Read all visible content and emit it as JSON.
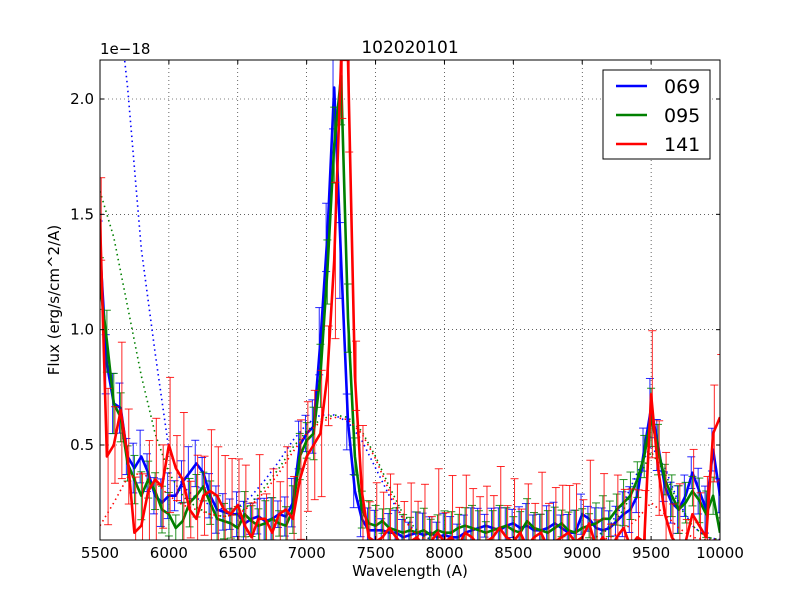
{
  "chart_data": {
    "type": "line",
    "title": "102020101",
    "xlabel": "Wavelength (A)",
    "ylabel": "Flux (erg/s/cm^2/A)",
    "y_offset_label": "1e−18",
    "xlim": [
      5500,
      10000
    ],
    "ylim": [
      0.088,
      2.17
    ],
    "xticks": [
      5500,
      6000,
      6500,
      7000,
      7500,
      8000,
      8500,
      9000,
      9500,
      10000
    ],
    "xtick_labels": [
      "5500",
      "6000",
      "6500",
      "7000",
      "7500",
      "8000",
      "8500",
      "9000",
      "9500",
      "10000"
    ],
    "yticks": [
      0.5,
      1.0,
      1.5,
      2.0
    ],
    "ytick_labels": [
      "0.5",
      "1.0",
      "1.5",
      "2.0"
    ],
    "grid": true,
    "legend_position": "upper right",
    "series": [
      {
        "name": "069",
        "color": "#0000ff",
        "x": [
          5500,
          5550,
          5600,
          5650,
          5700,
          5750,
          5800,
          5850,
          5900,
          5950,
          6000,
          6050,
          6100,
          6150,
          6200,
          6250,
          6300,
          6350,
          6400,
          6450,
          6500,
          6550,
          6600,
          6650,
          6700,
          6750,
          6800,
          6850,
          6900,
          6950,
          7000,
          7050,
          7100,
          7150,
          7200,
          7250,
          7300,
          7350,
          7400,
          7450,
          7500,
          7550,
          7600,
          7650,
          7700,
          7750,
          7800,
          7850,
          7900,
          7950,
          8000,
          8050,
          8100,
          8150,
          8200,
          8250,
          8300,
          8350,
          8400,
          8450,
          8500,
          8550,
          8600,
          8650,
          8700,
          8750,
          8800,
          8850,
          8900,
          8950,
          9000,
          9050,
          9100,
          9150,
          9200,
          9250,
          9300,
          9350,
          9400,
          9450,
          9500,
          9550,
          9600,
          9650,
          9700,
          9750,
          9800,
          9850,
          9900,
          9950,
          10000
        ],
        "y": [
          1.35,
          0.85,
          0.68,
          0.66,
          0.45,
          0.4,
          0.45,
          0.38,
          0.28,
          0.25,
          0.28,
          0.28,
          0.34,
          0.38,
          0.42,
          0.38,
          0.28,
          0.22,
          0.21,
          0.2,
          0.2,
          0.16,
          0.18,
          0.19,
          0.17,
          0.18,
          0.2,
          0.19,
          0.25,
          0.5,
          0.55,
          0.58,
          0.95,
          1.4,
          2.05,
          1.3,
          0.6,
          0.3,
          0.18,
          0.13,
          0.13,
          0.13,
          0.12,
          0.12,
          0.1,
          0.11,
          0.12,
          0.11,
          0.12,
          0.1,
          0.11,
          0.1,
          0.1,
          0.12,
          0.13,
          0.14,
          0.15,
          0.14,
          0.13,
          0.15,
          0.16,
          0.14,
          0.15,
          0.13,
          0.13,
          0.14,
          0.16,
          0.14,
          0.12,
          0.12,
          0.2,
          0.18,
          0.14,
          0.13,
          0.14,
          0.17,
          0.2,
          0.22,
          0.28,
          0.48,
          0.66,
          0.5,
          0.32,
          0.25,
          0.22,
          0.28,
          0.38,
          0.3,
          0.22,
          0.48,
          0.28
        ],
        "model_x": [
          5500,
          5600,
          5700,
          5800,
          5900,
          6000,
          6100,
          6200,
          6300,
          6400,
          6500,
          6600,
          6700,
          6800,
          6900,
          7000,
          7100,
          7200,
          7300,
          7400,
          7500,
          7600,
          7700,
          7800,
          7900,
          8000,
          8100,
          8200,
          8300,
          8400,
          8500,
          8600,
          8700,
          8800,
          8900,
          9000,
          9100,
          9200,
          9300,
          9400,
          9500,
          9600,
          9700,
          9800,
          9900,
          10000
        ],
        "model_y": [
          3.2,
          2.6,
          2.05,
          1.35,
          0.9,
          0.48,
          0.32,
          0.27,
          0.24,
          0.22,
          0.23,
          0.28,
          0.35,
          0.43,
          0.52,
          0.59,
          0.63,
          0.63,
          0.6,
          0.52,
          0.4,
          0.28,
          0.18,
          0.12,
          0.09,
          0.08,
          0.08,
          0.08,
          0.08,
          0.08,
          0.08,
          0.08,
          0.08,
          0.08,
          0.08,
          0.08,
          0.1,
          0.15,
          0.25,
          0.38,
          0.5,
          0.4,
          0.25,
          0.15,
          0.1,
          0.09
        ]
      },
      {
        "name": "095",
        "color": "#008000",
        "x": [
          5500,
          5550,
          5600,
          5650,
          5700,
          5750,
          5800,
          5850,
          5900,
          5950,
          6000,
          6050,
          6100,
          6150,
          6200,
          6250,
          6300,
          6350,
          6400,
          6450,
          6500,
          6550,
          6600,
          6650,
          6700,
          6750,
          6800,
          6850,
          6900,
          6950,
          7000,
          7050,
          7100,
          7150,
          7200,
          7250,
          7300,
          7350,
          7400,
          7450,
          7500,
          7550,
          7600,
          7650,
          7700,
          7750,
          7800,
          7850,
          7900,
          7950,
          8000,
          8050,
          8100,
          8150,
          8200,
          8250,
          8300,
          8350,
          8400,
          8450,
          8500,
          8550,
          8600,
          8650,
          8700,
          8750,
          8800,
          8850,
          8900,
          8950,
          9000,
          9050,
          9100,
          9150,
          9200,
          9250,
          9300,
          9350,
          9400,
          9450,
          9500,
          9550,
          9600,
          9650,
          9700,
          9750,
          9800,
          9850,
          9900,
          9950,
          10000
        ],
        "y": [
          1.2,
          0.95,
          0.68,
          0.62,
          0.42,
          0.35,
          0.28,
          0.35,
          0.3,
          0.22,
          0.2,
          0.14,
          0.17,
          0.25,
          0.28,
          0.32,
          0.25,
          0.18,
          0.17,
          0.16,
          0.14,
          0.2,
          0.17,
          0.15,
          0.16,
          0.18,
          0.16,
          0.15,
          0.22,
          0.45,
          0.52,
          0.55,
          0.8,
          1.25,
          1.8,
          2.1,
          1.05,
          0.45,
          0.22,
          0.16,
          0.15,
          0.17,
          0.14,
          0.13,
          0.12,
          0.13,
          0.12,
          0.13,
          0.11,
          0.13,
          0.12,
          0.12,
          0.14,
          0.15,
          0.14,
          0.13,
          0.12,
          0.13,
          0.14,
          0.15,
          0.13,
          0.12,
          0.17,
          0.14,
          0.13,
          0.12,
          0.14,
          0.16,
          0.13,
          0.12,
          0.14,
          0.15,
          0.16,
          0.18,
          0.18,
          0.22,
          0.25,
          0.28,
          0.35,
          0.45,
          0.62,
          0.48,
          0.35,
          0.28,
          0.22,
          0.25,
          0.3,
          0.26,
          0.2,
          0.28,
          0.12
        ],
        "model_x": [
          5500,
          5600,
          5700,
          5800,
          5900,
          6000,
          6100,
          6200,
          6300,
          6400,
          6500,
          6600,
          6700,
          6800,
          6900,
          7000,
          7100,
          7200,
          7300,
          7400,
          7500,
          7600,
          7700,
          7800,
          7900,
          8000,
          8100,
          8200,
          8300,
          8400,
          8500,
          8600,
          8700,
          8800,
          8900,
          9000,
          9100,
          9200,
          9300,
          9400,
          9500,
          9600,
          9700,
          9800,
          9900,
          10000
        ],
        "model_y": [
          1.6,
          1.4,
          1.1,
          0.8,
          0.55,
          0.38,
          0.28,
          0.23,
          0.2,
          0.19,
          0.2,
          0.25,
          0.32,
          0.4,
          0.49,
          0.56,
          0.61,
          0.63,
          0.62,
          0.56,
          0.45,
          0.32,
          0.2,
          0.13,
          0.09,
          0.08,
          0.08,
          0.08,
          0.08,
          0.08,
          0.08,
          0.08,
          0.08,
          0.08,
          0.08,
          0.08,
          0.1,
          0.14,
          0.22,
          0.34,
          0.47,
          0.38,
          0.24,
          0.15,
          0.1,
          0.09
        ]
      },
      {
        "name": "141",
        "color": "#ff0000",
        "x": [
          5500,
          5550,
          5600,
          5650,
          5700,
          5750,
          5800,
          5850,
          5900,
          5950,
          6000,
          6050,
          6100,
          6150,
          6200,
          6250,
          6300,
          6350,
          6400,
          6450,
          6500,
          6550,
          6600,
          6650,
          6700,
          6750,
          6800,
          6850,
          6900,
          6950,
          7000,
          7050,
          7100,
          7150,
          7200,
          7250,
          7300,
          7350,
          7400,
          7450,
          7500,
          7550,
          7600,
          7650,
          7700,
          7750,
          7800,
          7850,
          7900,
          7950,
          8000,
          8050,
          8100,
          8150,
          8200,
          8250,
          8300,
          8350,
          8400,
          8450,
          8500,
          8550,
          8600,
          8650,
          8700,
          8750,
          8800,
          8850,
          8900,
          8950,
          9000,
          9050,
          9100,
          9150,
          9200,
          9250,
          9300,
          9350,
          9400,
          9450,
          9500,
          9550,
          9600,
          9650,
          9700,
          9750,
          9800,
          9850,
          9900,
          9950,
          10000
        ],
        "y": [
          1.48,
          0.45,
          0.5,
          0.65,
          0.45,
          0.12,
          0.15,
          0.3,
          0.35,
          0.32,
          0.5,
          0.4,
          0.35,
          0.22,
          0.18,
          0.28,
          0.3,
          0.28,
          0.22,
          0.2,
          0.24,
          0.15,
          0.1,
          0.18,
          0.18,
          0.12,
          0.2,
          0.22,
          0.18,
          0.35,
          0.45,
          0.5,
          0.55,
          0.8,
          1.3,
          2.17,
          2.17,
          0.8,
          0.3,
          0.1,
          0.08,
          0.1,
          0.14,
          0.1,
          0.06,
          0.08,
          0.1,
          0.06,
          0.08,
          0.12,
          0.08,
          0.1,
          0.06,
          0.12,
          0.1,
          0.06,
          0.08,
          0.1,
          0.14,
          0.1,
          0.08,
          0.12,
          0.06,
          0.1,
          0.12,
          0.06,
          0.08,
          0.1,
          0.12,
          0.08,
          0.1,
          0.16,
          0.06,
          0.1,
          0.04,
          0.1,
          0.14,
          0.06,
          0.1,
          0.08,
          0.72,
          0.4,
          0.2,
          0.1,
          0.06,
          0.08,
          0.2,
          0.15,
          0.1,
          0.55,
          0.62
        ],
        "model_x": [
          5500,
          5600,
          5700,
          5800,
          5900,
          6000,
          6100,
          6200,
          6300,
          6400,
          6500,
          6600,
          6700,
          6800,
          6900,
          7000,
          7100,
          7200,
          7300,
          7400,
          7500,
          7600,
          7700,
          7800,
          7900,
          8000,
          8100,
          8200,
          8300,
          8400,
          8500,
          8600,
          8700,
          8800,
          8900,
          9000,
          9100,
          9200,
          9300,
          9400,
          9500,
          9600,
          9700,
          9800,
          9900,
          10000
        ],
        "model_y": [
          0.15,
          0.25,
          0.36,
          0.38,
          0.34,
          0.28,
          0.24,
          0.22,
          0.2,
          0.19,
          0.2,
          0.24,
          0.3,
          0.38,
          0.47,
          0.55,
          0.6,
          0.62,
          0.61,
          0.55,
          0.44,
          0.3,
          0.18,
          0.11,
          0.08,
          0.08,
          0.08,
          0.08,
          0.08,
          0.08,
          0.08,
          0.08,
          0.08,
          0.08,
          0.08,
          0.08,
          0.08,
          0.1,
          0.13,
          0.18,
          0.25,
          0.2,
          0.14,
          0.1,
          0.09,
          0.09
        ]
      }
    ]
  },
  "legend": {
    "items": [
      {
        "label": "069",
        "color": "#0000ff"
      },
      {
        "label": "095",
        "color": "#008000"
      },
      {
        "label": "141",
        "color": "#ff0000"
      }
    ]
  }
}
